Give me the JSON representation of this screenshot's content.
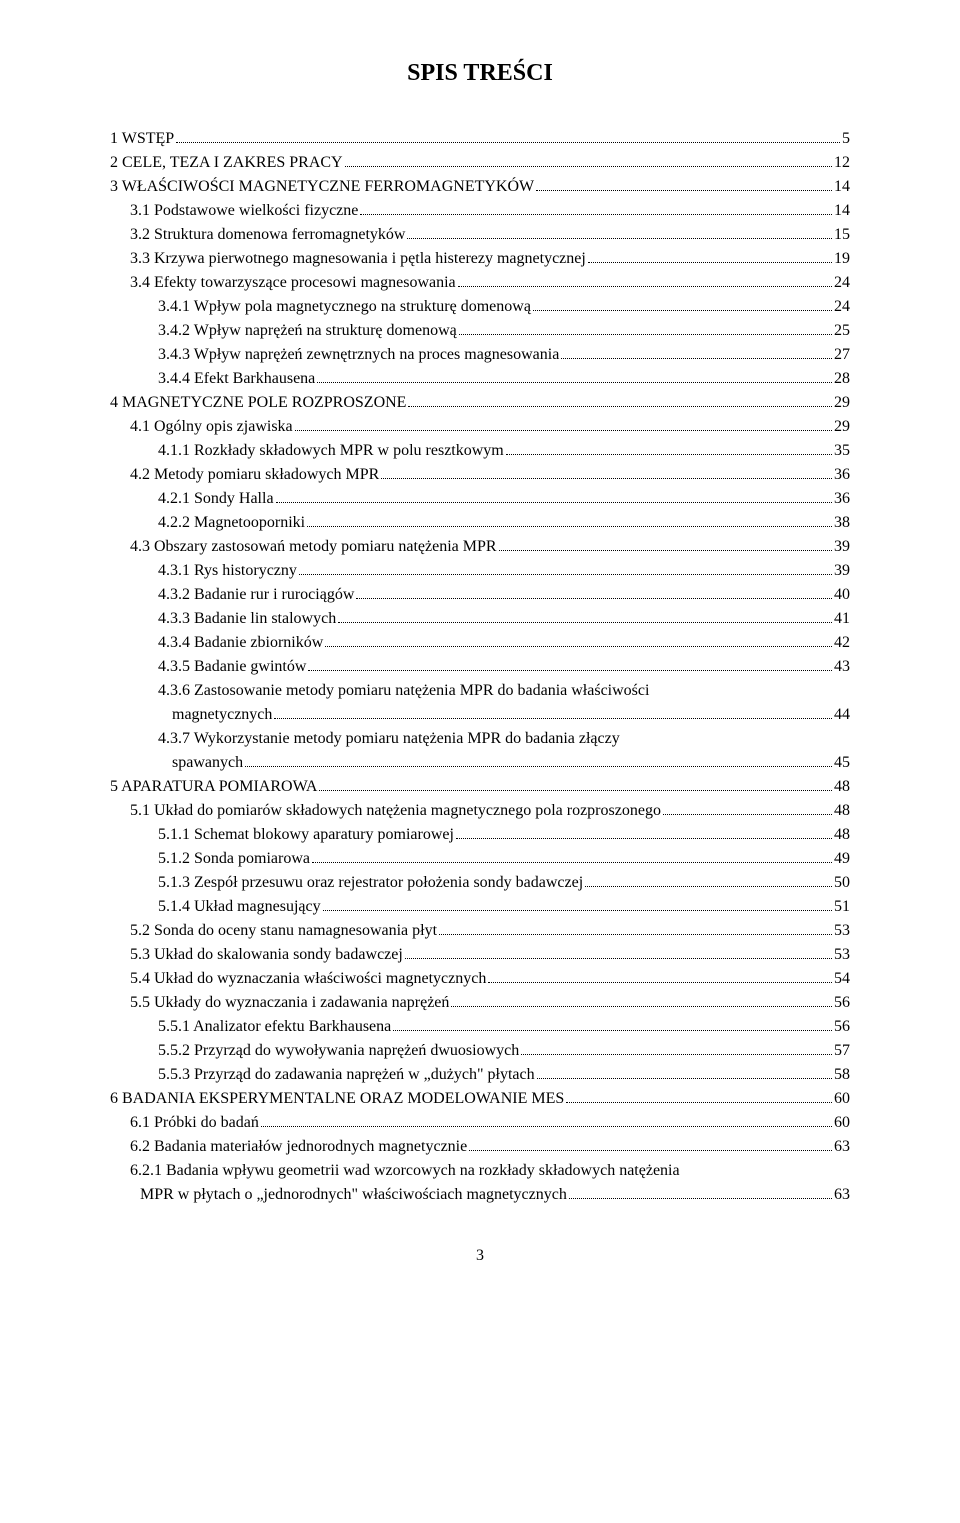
{
  "title": "SPIS TREŚCI",
  "page_footer": "3",
  "style": {
    "font_family": "Times New Roman",
    "title_fontsize": 24,
    "body_fontsize": 16,
    "text_color": "#000000",
    "background_color": "#ffffff"
  },
  "entries": [
    {
      "indent": 0,
      "label": "1 WSTĘP",
      "page": "5"
    },
    {
      "indent": 0,
      "label": "2 CELE, TEZA I ZAKRES PRACY",
      "page": "12"
    },
    {
      "indent": 0,
      "label": "3 WŁAŚCIWOŚCI MAGNETYCZNE FERROMAGNETYKÓW",
      "page": "14"
    },
    {
      "indent": 1,
      "label": "3.1 Podstawowe wielkości fizyczne",
      "page": "14"
    },
    {
      "indent": 1,
      "label": "3.2 Struktura domenowa ferromagnetyków",
      "page": "15"
    },
    {
      "indent": 1,
      "label": "3.3 Krzywa pierwotnego magnesowania i pętla histerezy magnetycznej",
      "page": "19"
    },
    {
      "indent": 1,
      "label": "3.4 Efekty towarzyszące procesowi magnesowania",
      "page": "24"
    },
    {
      "indent": 2,
      "label": "3.4.1 Wpływ pola magnetycznego na strukturę domenową",
      "page": "24"
    },
    {
      "indent": 2,
      "label": "3.4.2 Wpływ naprężeń na strukturę domenową",
      "page": "25"
    },
    {
      "indent": 2,
      "label": "3.4.3 Wpływ naprężeń zewnętrznych na proces magnesowania",
      "page": "27"
    },
    {
      "indent": 2,
      "label": "3.4.4 Efekt Barkhausena",
      "page": "28"
    },
    {
      "indent": 0,
      "label": "4 MAGNETYCZNE POLE ROZPROSZONE",
      "page": "29"
    },
    {
      "indent": 1,
      "label": "4.1 Ogólny opis zjawiska",
      "page": "29"
    },
    {
      "indent": 2,
      "label": "4.1.1 Rozkłady składowych MPR w polu resztkowym",
      "page": "35"
    },
    {
      "indent": 1,
      "label": "4.2 Metody pomiaru składowych MPR",
      "page": "36"
    },
    {
      "indent": 2,
      "label": "4.2.1 Sondy Halla",
      "page": "36"
    },
    {
      "indent": 2,
      "label": "4.2.2 Magnetooporniki",
      "page": "38"
    },
    {
      "indent": 1,
      "label": "4.3 Obszary zastosowań metody pomiaru natężenia MPR",
      "page": "39"
    },
    {
      "indent": 2,
      "label": "4.3.1 Rys historyczny",
      "page": "39"
    },
    {
      "indent": 2,
      "label": "4.3.2 Badanie rur i rurociągów",
      "page": "40"
    },
    {
      "indent": 2,
      "label": "4.3.3 Badanie lin stalowych",
      "page": "41"
    },
    {
      "indent": 2,
      "label": "4.3.4 Badanie zbiorników",
      "page": "42"
    },
    {
      "indent": 2,
      "label": "4.3.5 Badanie gwintów",
      "page": "43"
    },
    {
      "indent": 2,
      "wrap": true,
      "label_first": "4.3.6 Zastosowanie metody pomiaru natężenia MPR do badania właściwości",
      "label_last": "magnetycznych",
      "page": "44",
      "cont_indent": 3
    },
    {
      "indent": 2,
      "wrap": true,
      "label_first": "4.3.7 Wykorzystanie metody pomiaru natężenia MPR do badania złączy",
      "label_last": "spawanych",
      "page": "45",
      "cont_indent": 3
    },
    {
      "indent": 0,
      "label": "5 APARATURA POMIAROWA",
      "page": "48"
    },
    {
      "indent": 1,
      "label": "5.1 Układ do pomiarów składowych natężenia magnetycznego pola rozproszonego",
      "page": "48"
    },
    {
      "indent": 2,
      "label": "5.1.1 Schemat blokowy aparatury pomiarowej",
      "page": "48"
    },
    {
      "indent": 2,
      "label": "5.1.2 Sonda pomiarowa",
      "page": " 49"
    },
    {
      "indent": 2,
      "label": "5.1.3 Zespół przesuwu oraz rejestrator położenia sondy badawczej",
      "page": "50"
    },
    {
      "indent": 2,
      "label": "5.1.4 Układ magnesujący",
      "page": "51"
    },
    {
      "indent": 1,
      "label": "5.2 Sonda do oceny stanu namagnesowania płyt",
      "page": "53"
    },
    {
      "indent": 1,
      "label": "5.3 Układ do skalowania sondy badawczej",
      "page": "53"
    },
    {
      "indent": 1,
      "label": "5.4 Układ do wyznaczania właściwości magnetycznych",
      "page": "54"
    },
    {
      "indent": 1,
      "label": "5.5 Układy do wyznaczania i zadawania naprężeń",
      "page": "56"
    },
    {
      "indent": 2,
      "label": "5.5.1 Analizator efektu Barkhausena",
      "page": "56"
    },
    {
      "indent": 2,
      "label": "5.5.2 Przyrząd do wywoływania naprężeń dwuosiowych",
      "page": "57"
    },
    {
      "indent": 2,
      "label": "5.5.3 Przyrząd do zadawania naprężeń w „dużych\" płytach",
      "page": "58"
    },
    {
      "indent": 0,
      "label": "6 BADANIA EKSPERYMENTALNE ORAZ MODELOWANIE MES",
      "page": "60"
    },
    {
      "indent": 1,
      "label": "6.1 Próbki do badań",
      "page": "60"
    },
    {
      "indent": 1,
      "label": "6.2 Badania materiałów jednorodnych magnetycznie",
      "page": "63"
    },
    {
      "indent": 1,
      "wrap": true,
      "label_first": "6.2.1 Badania wpływu geometrii wad wzorcowych  na rozkłady składowych natężenia",
      "label_last": "MPR w płytach o „jednorodnych\" właściwościach magnetycznych ",
      "page": "63",
      "cont_indent": "sub"
    }
  ]
}
